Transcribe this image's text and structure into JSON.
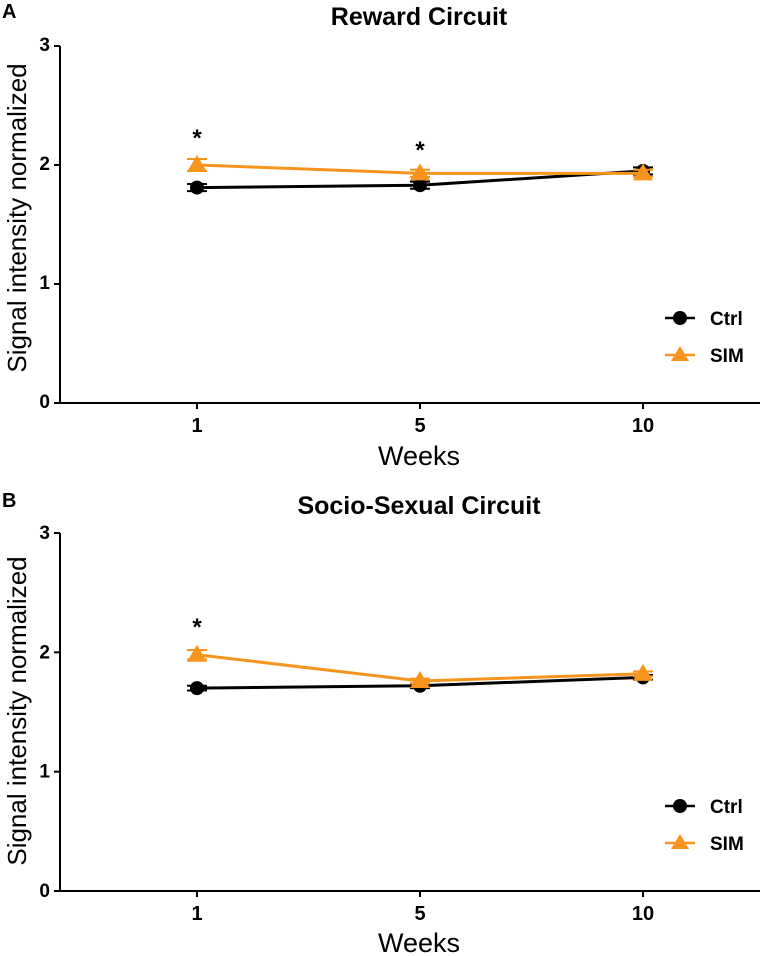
{
  "colors": {
    "ctrl": "#000000",
    "sim": "#F7941D"
  },
  "chart_data": [
    {
      "type": "line",
      "panel_label": "A",
      "title": "Reward Circuit",
      "xlabel": "Weeks",
      "ylabel": "Signal intensity normalized",
      "categories": [
        "1",
        "5",
        "10"
      ],
      "ylim": [
        0,
        3
      ],
      "yticks": [
        "0",
        "1",
        "2",
        "3"
      ],
      "series": [
        {
          "name": "Ctrl",
          "marker": "circle",
          "values": [
            1.81,
            1.83,
            1.95
          ],
          "errors": [
            0.03,
            0.03,
            0.03
          ]
        },
        {
          "name": "SIM",
          "marker": "triangle",
          "values": [
            2.0,
            1.93,
            1.93
          ],
          "errors": [
            0.05,
            0.03,
            0.03
          ]
        }
      ],
      "significance": [
        "*",
        "*",
        ""
      ],
      "legend_position": "right"
    },
    {
      "type": "line",
      "panel_label": "B",
      "title": "Socio-Sexual Circuit",
      "xlabel": "Weeks",
      "ylabel": "Signal intensity normalized",
      "categories": [
        "1",
        "5",
        "10"
      ],
      "ylim": [
        0,
        3
      ],
      "yticks": [
        "0",
        "1",
        "2",
        "3"
      ],
      "series": [
        {
          "name": "Ctrl",
          "marker": "circle",
          "values": [
            1.7,
            1.72,
            1.79
          ],
          "errors": [
            0.02,
            0.02,
            0.02
          ]
        },
        {
          "name": "SIM",
          "marker": "triangle",
          "values": [
            1.98,
            1.76,
            1.82
          ],
          "errors": [
            0.04,
            0.02,
            0.02
          ]
        }
      ],
      "significance": [
        "*",
        "",
        ""
      ],
      "legend_position": "right"
    }
  ]
}
